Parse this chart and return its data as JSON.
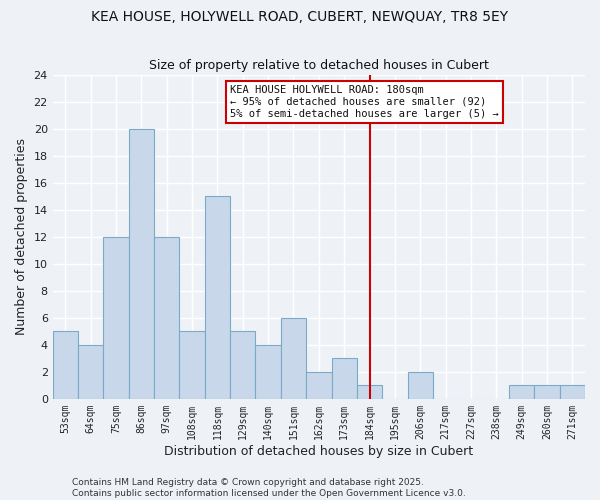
{
  "title": "KEA HOUSE, HOLYWELL ROAD, CUBERT, NEWQUAY, TR8 5EY",
  "subtitle": "Size of property relative to detached houses in Cubert",
  "xlabel": "Distribution of detached houses by size in Cubert",
  "ylabel": "Number of detached properties",
  "bar_labels": [
    "53sqm",
    "64sqm",
    "75sqm",
    "86sqm",
    "97sqm",
    "108sqm",
    "118sqm",
    "129sqm",
    "140sqm",
    "151sqm",
    "162sqm",
    "173sqm",
    "184sqm",
    "195sqm",
    "206sqm",
    "217sqm",
    "227sqm",
    "238sqm",
    "249sqm",
    "260sqm",
    "271sqm"
  ],
  "bar_heights": [
    5,
    4,
    12,
    20,
    12,
    5,
    15,
    5,
    4,
    6,
    2,
    3,
    1,
    0,
    2,
    0,
    0,
    0,
    1,
    1,
    1
  ],
  "bar_color": "#c8d8ea",
  "bar_edge_color": "#7aaac8",
  "vline_color": "#cc0000",
  "ylim": [
    0,
    24
  ],
  "yticks": [
    0,
    2,
    4,
    6,
    8,
    10,
    12,
    14,
    16,
    18,
    20,
    22,
    24
  ],
  "annotation_title": "KEA HOUSE HOLYWELL ROAD: 180sqm",
  "annotation_line1": "← 95% of detached houses are smaller (92)",
  "annotation_line2": "5% of semi-detached houses are larger (5) →",
  "footnote1": "Contains HM Land Registry data © Crown copyright and database right 2025.",
  "footnote2": "Contains public sector information licensed under the Open Government Licence v3.0.",
  "background_color": "#eef2f7",
  "grid_color": "#ffffff"
}
